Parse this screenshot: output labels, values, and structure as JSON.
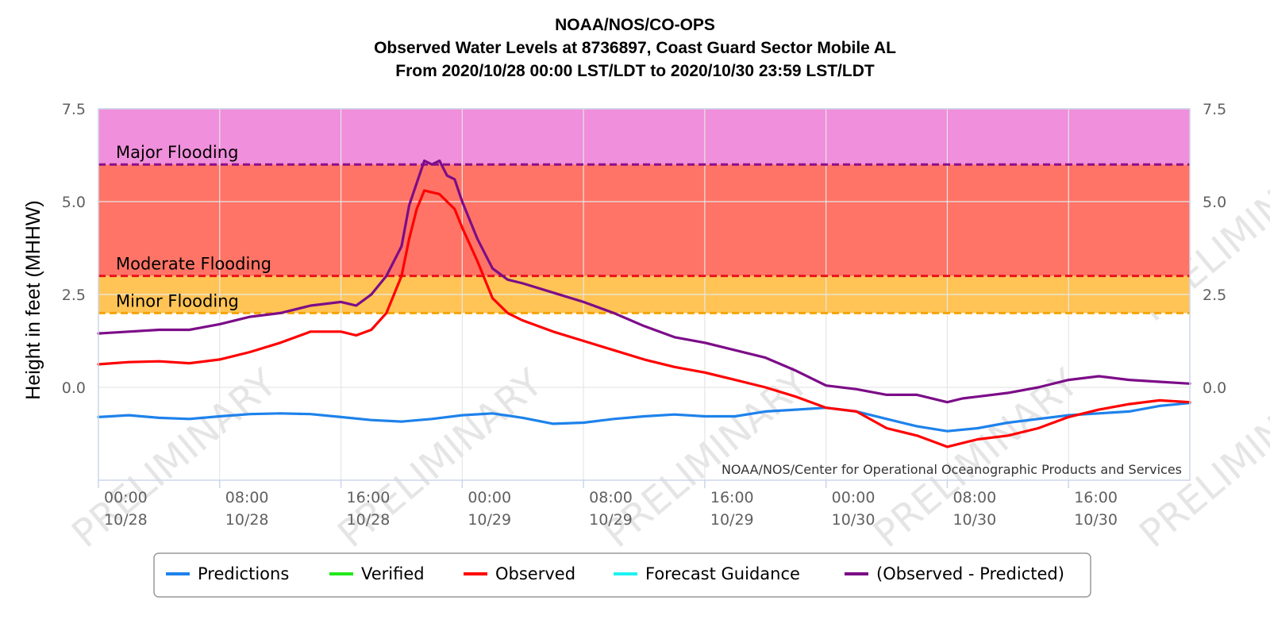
{
  "chart_data": {
    "type": "line",
    "title": [
      "NOAA/NOS/CO-OPS",
      "Observed Water Levels at 8736897, Coast Guard Sector Mobile AL",
      "From 2020/10/28 00:00 LST/LDT to 2020/10/30 23:59 LST/LDT"
    ],
    "ylabel": "Height in feet (MHHW)",
    "ylim": [
      -2.5,
      7.5
    ],
    "yticks": [
      "7.5",
      "5.0",
      "2.5",
      "0.0"
    ],
    "xlim_hours": [
      0,
      72
    ],
    "xticks": [
      {
        "hour": 0,
        "time": "00:00",
        "date": "10/28"
      },
      {
        "hour": 8,
        "time": "08:00",
        "date": "10/28"
      },
      {
        "hour": 16,
        "time": "16:00",
        "date": "10/28"
      },
      {
        "hour": 24,
        "time": "00:00",
        "date": "10/29"
      },
      {
        "hour": 32,
        "time": "08:00",
        "date": "10/29"
      },
      {
        "hour": 40,
        "time": "16:00",
        "date": "10/29"
      },
      {
        "hour": 48,
        "time": "00:00",
        "date": "10/30"
      },
      {
        "hour": 56,
        "time": "08:00",
        "date": "10/30"
      },
      {
        "hour": 64,
        "time": "16:00",
        "date": "10/30"
      }
    ],
    "flood_zones": [
      {
        "label": "Major Flooding",
        "from": 6.0,
        "to": 7.5,
        "fill": "#f08fdb",
        "line": "#8b0f8b"
      },
      {
        "label": "Moderate Flooding",
        "from": 3.0,
        "to": 6.0,
        "fill": "#ff7466",
        "line": "#e8131c"
      },
      {
        "label": "Minor Flooding",
        "from": 2.0,
        "to": 3.0,
        "fill": "#ffc455",
        "line": "#f7a308"
      }
    ],
    "series": [
      {
        "name": "Predictions",
        "color": "#1e82eb",
        "x": [
          0,
          2,
          4,
          6,
          8,
          10,
          12,
          14,
          16,
          18,
          20,
          22,
          24,
          26,
          28,
          30,
          32,
          34,
          36,
          38,
          40,
          42,
          44,
          46,
          48,
          50,
          52,
          54,
          56,
          58,
          60,
          62,
          64,
          66,
          68,
          70,
          72
        ],
        "y": [
          -0.8,
          -0.75,
          -0.82,
          -0.85,
          -0.78,
          -0.72,
          -0.7,
          -0.72,
          -0.8,
          -0.88,
          -0.92,
          -0.85,
          -0.75,
          -0.7,
          -0.82,
          -0.98,
          -0.95,
          -0.85,
          -0.78,
          -0.73,
          -0.78,
          -0.78,
          -0.65,
          -0.6,
          -0.55,
          -0.65,
          -0.85,
          -1.05,
          -1.18,
          -1.1,
          -0.95,
          -0.85,
          -0.75,
          -0.7,
          -0.65,
          -0.5,
          -0.42
        ]
      },
      {
        "name": "Observed",
        "color": "#ff0000",
        "x": [
          0,
          2,
          4,
          6,
          8,
          10,
          12,
          14,
          16,
          17,
          18,
          19,
          20,
          20.5,
          21,
          21.5,
          22,
          22.5,
          23,
          23.5,
          24,
          25,
          26,
          27,
          28,
          30,
          32,
          34,
          36,
          38,
          40,
          42,
          44,
          46,
          48,
          50,
          52,
          54,
          56,
          57,
          58,
          60,
          62,
          64,
          66,
          68,
          70,
          72
        ],
        "y": [
          0.62,
          0.68,
          0.7,
          0.65,
          0.75,
          0.95,
          1.2,
          1.5,
          1.5,
          1.4,
          1.55,
          2.0,
          3.0,
          4.0,
          4.8,
          5.3,
          5.25,
          5.2,
          5.0,
          4.8,
          4.3,
          3.4,
          2.4,
          2.0,
          1.8,
          1.5,
          1.25,
          1.0,
          0.75,
          0.55,
          0.4,
          0.2,
          0.0,
          -0.25,
          -0.55,
          -0.65,
          -1.1,
          -1.3,
          -1.6,
          -1.5,
          -1.4,
          -1.3,
          -1.1,
          -0.8,
          -0.6,
          -0.45,
          -0.35,
          -0.4
        ]
      },
      {
        "name": "(Observed - Predicted)",
        "color": "#7c0c88",
        "x": [
          0,
          2,
          4,
          6,
          8,
          10,
          12,
          14,
          16,
          17,
          18,
          19,
          20,
          20.5,
          21,
          21.5,
          22,
          22.5,
          23,
          23.5,
          24,
          25,
          26,
          27,
          28,
          30,
          32,
          34,
          36,
          38,
          40,
          42,
          44,
          46,
          48,
          50,
          52,
          54,
          56,
          57,
          58,
          60,
          62,
          64,
          66,
          68,
          70,
          72
        ],
        "y": [
          1.45,
          1.5,
          1.55,
          1.55,
          1.7,
          1.9,
          2.0,
          2.2,
          2.3,
          2.2,
          2.5,
          3.0,
          3.8,
          4.9,
          5.5,
          6.1,
          6.0,
          6.1,
          5.7,
          5.6,
          5.0,
          4.0,
          3.2,
          2.9,
          2.8,
          2.55,
          2.3,
          2.0,
          1.65,
          1.35,
          1.2,
          1.0,
          0.8,
          0.45,
          0.05,
          -0.05,
          -0.2,
          -0.2,
          -0.4,
          -0.3,
          -0.25,
          -0.15,
          0.0,
          0.2,
          0.3,
          0.2,
          0.15,
          0.1
        ]
      },
      {
        "name": "Verified",
        "color": "#23e81c",
        "x": [],
        "y": []
      },
      {
        "name": "Forecast Guidance",
        "color": "#1ef2f2",
        "x": [],
        "y": []
      }
    ],
    "legend": {
      "placement": "bottom",
      "items": [
        {
          "name": "Predictions",
          "color": "#1e82eb"
        },
        {
          "name": "Verified",
          "color": "#23e81c"
        },
        {
          "name": "Observed",
          "color": "#ff0000"
        },
        {
          "name": "Forecast Guidance",
          "color": "#1ef2f2"
        },
        {
          "name": "(Observed - Predicted)",
          "color": "#7c0c88"
        }
      ]
    },
    "credit": "NOAA/NOS/Center for Operational Oceanographic Products and Services",
    "watermark": "PRELIMINARY",
    "grid": true
  }
}
